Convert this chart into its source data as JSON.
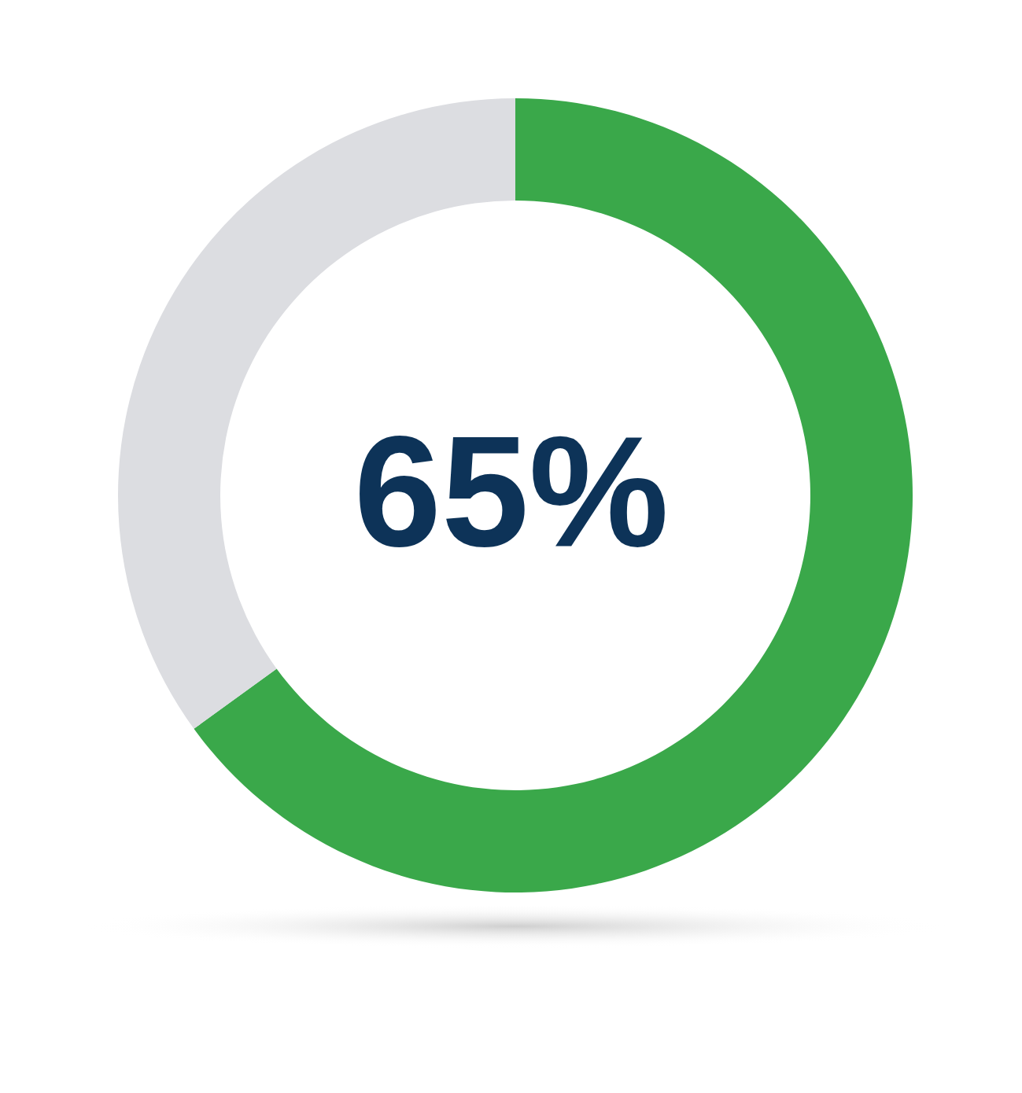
{
  "chart_data": {
    "type": "donut",
    "categories": [
      null,
      null
    ],
    "values": [
      65,
      35
    ],
    "colors": [
      "#3aa84a",
      "#dcdde1"
    ],
    "annotations": [
      "65%"
    ]
  }
}
